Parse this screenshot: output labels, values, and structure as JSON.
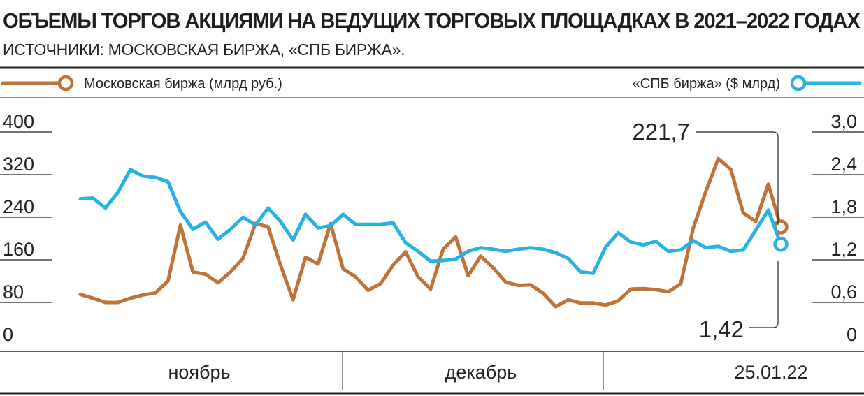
{
  "title": "ОБЪЕМЫ ТОРГОВ АКЦИЯМИ НА ВЕДУЩИХ ТОРГОВЫХ ПЛОЩАДКАХ В 2021–2022 ГОДАХ",
  "subtitle": "ИСТОЧНИКИ: МОСКОВСКАЯ БИРЖА, «СПБ БИРЖА».",
  "colors": {
    "moex": "#c07339",
    "spb": "#27b2e3",
    "axis": "#222222"
  },
  "chart_data": {
    "type": "line",
    "title": "ОБЪЕМЫ ТОРГОВ АКЦИЯМИ НА ВЕДУЩИХ ТОРГОВЫХ ПЛОЩАДКАХ В 2021–2022 ГОДАХ",
    "grid": false,
    "legend": {
      "placement": "top"
    },
    "x_labels": [
      "ноябрь",
      "декабрь",
      "25.01.22"
    ],
    "y_left": {
      "ylim": [
        0,
        400
      ],
      "ticks": [
        "0",
        "80",
        "160",
        "240",
        "320",
        "400"
      ]
    },
    "y_right": {
      "ylim": [
        0,
        3.0
      ],
      "ticks": [
        "0",
        "0,6",
        "1,2",
        "1,8",
        "2,4",
        "3,0"
      ]
    },
    "series": [
      {
        "name": "Московская биржа (млрд руб.)",
        "axis": "left",
        "values": [
          95,
          88,
          80,
          80,
          88,
          94,
          98,
          120,
          225,
          137,
          133,
          117,
          137,
          163,
          228,
          222,
          150,
          85,
          165,
          152,
          228,
          143,
          128,
          103,
          115,
          150,
          175,
          128,
          105,
          180,
          203,
          130,
          167,
          145,
          118,
          112,
          113,
          97,
          72,
          85,
          79,
          79,
          75,
          83,
          105,
          106,
          104,
          100,
          115,
          220,
          288,
          350,
          330,
          248,
          232,
          302,
          221.7
        ]
      },
      {
        "name": "«СПБ биржа» ($ млрд)",
        "axis": "right",
        "values": [
          2.06,
          2.07,
          1.93,
          2.15,
          2.47,
          2.38,
          2.36,
          2.3,
          1.88,
          1.63,
          1.73,
          1.49,
          1.63,
          1.8,
          1.69,
          1.93,
          1.74,
          1.48,
          1.84,
          1.65,
          1.68,
          1.84,
          1.7,
          1.7,
          1.7,
          1.72,
          1.44,
          1.32,
          1.18,
          1.19,
          1.21,
          1.32,
          1.37,
          1.35,
          1.32,
          1.35,
          1.37,
          1.35,
          1.3,
          1.22,
          1.03,
          1.01,
          1.38,
          1.58,
          1.45,
          1.41,
          1.46,
          1.32,
          1.34,
          1.47,
          1.37,
          1.39,
          1.32,
          1.34,
          1.62,
          1.9,
          1.42
        ]
      }
    ],
    "annotations": [
      {
        "series": "Московская биржа (млрд руб.)",
        "label": "221,7"
      },
      {
        "series": "«СПБ биржа» ($ млрд)",
        "label": "1,42"
      }
    ]
  }
}
